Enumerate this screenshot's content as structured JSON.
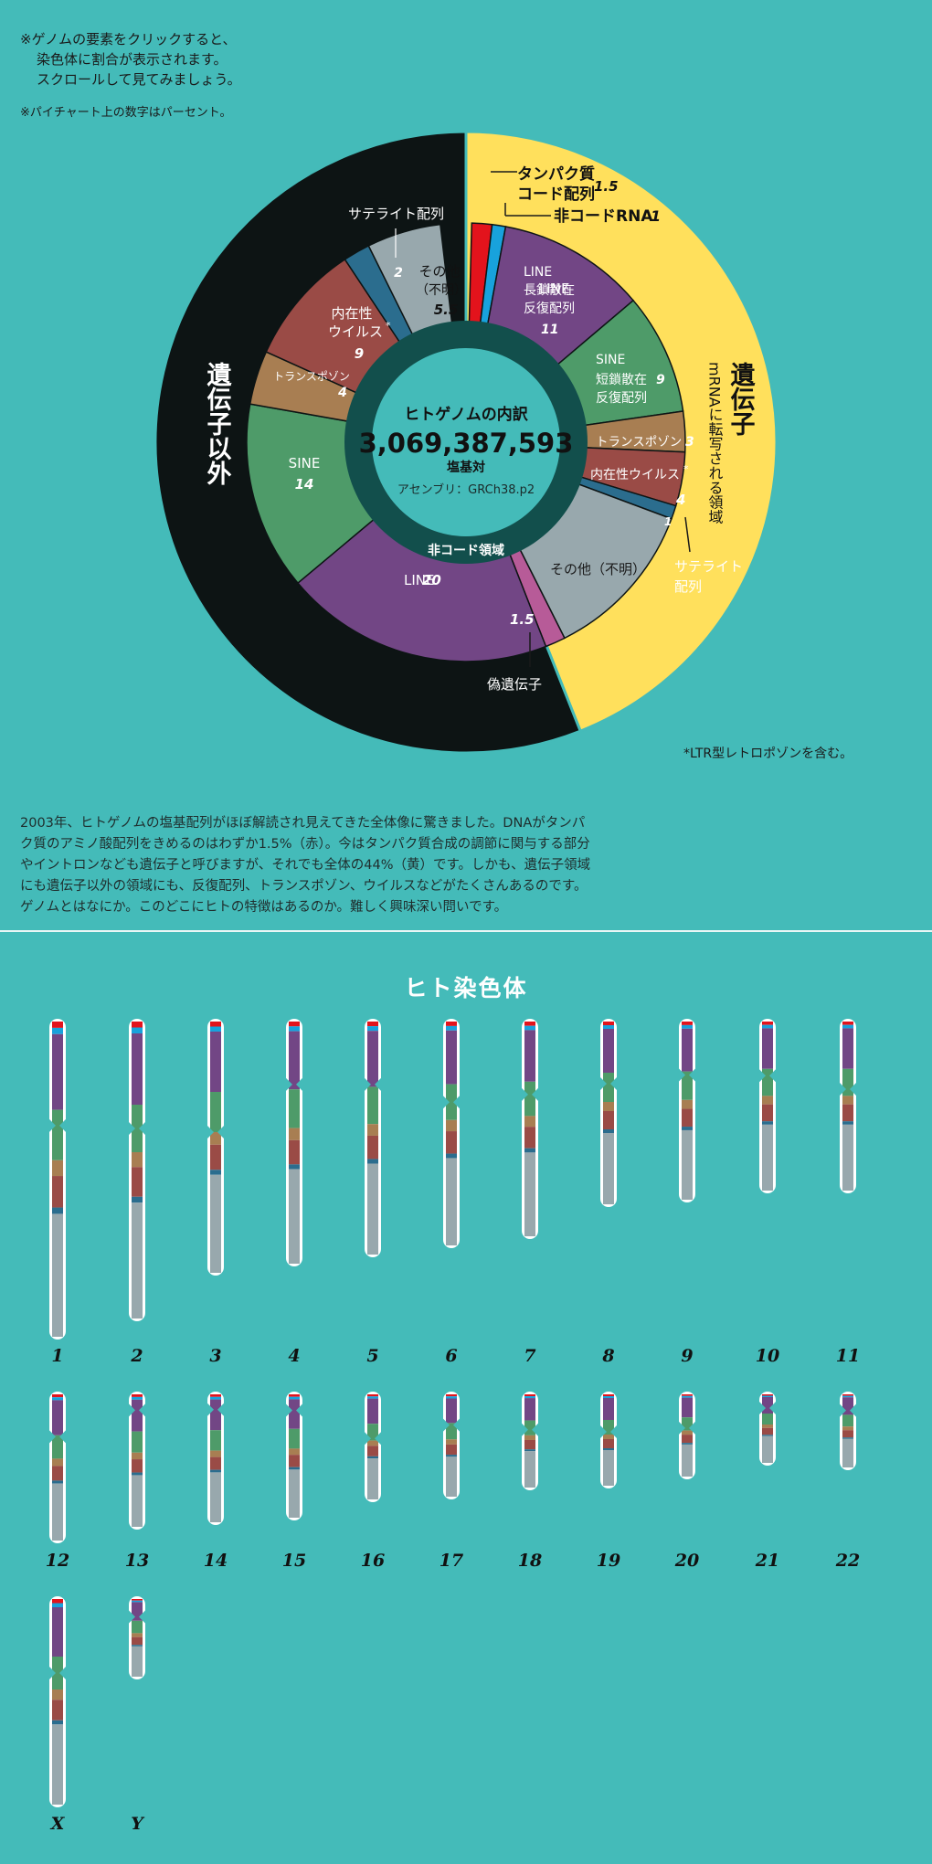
{
  "notes": {
    "line1": "※ゲノムの要素をクリックすると、",
    "line2": "染色体に割合が表示されます。",
    "line3": "スクロールして見てみましょう。",
    "note2": "※パイチャート上の数字はパーセント。"
  },
  "center": {
    "title": "ヒトゲノムの内訳",
    "count": "3,069,387,593",
    "unit": "塩基対",
    "assembly": "アセンブリ：GRCh38.p2",
    "ring_label": "非コード領域"
  },
  "colors": {
    "protein_coding": "#e3131c",
    "noncoding_rna": "#18a2dc",
    "line": "#724685",
    "sine": "#4e9b69",
    "transposon": "#a87e52",
    "erv": "#9a4b46",
    "satellite": "#2b6d8e",
    "other": "#98a8ad",
    "pseudogene": "#b75b98",
    "gene_region": "#ffe05c",
    "non_gene_region": "#0d1414",
    "center_ring": "#124f4c"
  },
  "chart_data": {
    "type": "pie",
    "units": "percent",
    "outer_ring": [
      {
        "name": "遺伝子",
        "sub": "mRNAに転写される領域",
        "value": 44
      },
      {
        "name": "遺伝子以外",
        "value": 56
      }
    ],
    "inner_ring": [
      {
        "key": "protein_coding",
        "label": "タンパク質コード配列",
        "value": 1.5
      },
      {
        "key": "noncoding_rna",
        "label": "非コードRNA",
        "value": 1
      },
      {
        "key": "line",
        "label": "LINE 長鎖散在反復配列",
        "value": 11
      },
      {
        "key": "sine",
        "label": "SINE 短鎖散在反復配列",
        "value": 9
      },
      {
        "key": "transposon",
        "label": "トランスポゾン",
        "value": 3
      },
      {
        "key": "erv",
        "label": "内在性ウイルス*",
        "value": 4
      },
      {
        "key": "satellite",
        "label": "サテライト配列",
        "value": 1
      },
      {
        "key": "other",
        "label": "その他（不明）",
        "value": 12
      },
      {
        "key": "pseudogene",
        "label": "偽遺伝子",
        "value": 1.5
      },
      {
        "key": "line",
        "label": "LINE",
        "value": 20
      },
      {
        "key": "sine",
        "label": "SINE",
        "value": 14
      },
      {
        "key": "transposon",
        "label": "トランスポゾン",
        "value": 4
      },
      {
        "key": "erv",
        "label": "内在性ウイルス*",
        "value": 9
      },
      {
        "key": "satellite",
        "label": "サテライト配列",
        "value": 2
      },
      {
        "key": "other",
        "label": "その他（不明）",
        "value": 5.5
      }
    ]
  },
  "donut_labels": {
    "protein": "タンパク質",
    "protein2": "コード配列",
    "protein_val": "1.5",
    "ncrna": "非コードRNA",
    "ncrna_val": "1",
    "line_a": "LINE",
    "line_b": "長鎖散在",
    "line_c": "反復配列",
    "line_val": "11",
    "sine_a": "SINE",
    "sine_b": "短鎖散在",
    "sine_c": "反復配列",
    "sine_val": "9",
    "trans": "トランスポゾン",
    "trans_val": "3",
    "erv": "内在性ウイルス",
    "erv_val": "4",
    "sat_val": "1",
    "sat_a": "サテライト",
    "sat_b": "配列",
    "other_g": "その他（不明）",
    "pseudo_val": "1.5",
    "pseudo": "偽遺伝子",
    "line2_a": "LINE",
    "line2_val": "20",
    "sine2_a": "SINE",
    "sine2_val": "14",
    "trans2": "トランスポゾン",
    "trans2_val": "4",
    "erv2_a": "内在性",
    "erv2_b": "ウイルス",
    "erv2_val": "9",
    "sat2_label": "サテライト配列",
    "sat2_val": "2",
    "other2_a": "その他",
    "other2_b": "（不明）",
    "other2_val": "5.5",
    "gene_title": "遺伝子",
    "gene_sub": "mRNAに転写される領域",
    "nongene_title": "遺伝子以外",
    "star": "*"
  },
  "ltr_note": "*LTR型レトロポゾンを含む。",
  "body_text": "2003年、ヒトゲノムの塩基配列がほぼ解読され見えてきた全体像に驚きました。DNAがタンパク質のアミノ酸配列をきめるのはわずか1.5%（赤）。今はタンパク質合成の調節に関与する部分やイントロンなども遺伝子と呼びますが、それでも全体の44%（黄）です。しかも、遺伝子領域にも遺伝子以外の領域にも、反復配列、トランスポゾン、ウイルスなどがたくさんあるのです。ゲノムとはなにか。このどこにヒトの特徴はあるのか。難しく興味深い問いです。",
  "chromosome_title": "ヒト染色体",
  "chromosomes": [
    {
      "label": "1"
    },
    {
      "label": "2"
    },
    {
      "label": "3"
    },
    {
      "label": "4"
    },
    {
      "label": "5"
    },
    {
      "label": "6"
    },
    {
      "label": "7"
    },
    {
      "label": "8"
    },
    {
      "label": "9"
    },
    {
      "label": "10"
    },
    {
      "label": "11"
    },
    {
      "label": "12"
    },
    {
      "label": "13"
    },
    {
      "label": "14"
    },
    {
      "label": "15"
    },
    {
      "label": "16"
    },
    {
      "label": "17"
    },
    {
      "label": "18"
    },
    {
      "label": "19"
    },
    {
      "label": "20"
    },
    {
      "label": "21"
    },
    {
      "label": "22"
    },
    {
      "label": "X"
    },
    {
      "label": "Y"
    }
  ]
}
